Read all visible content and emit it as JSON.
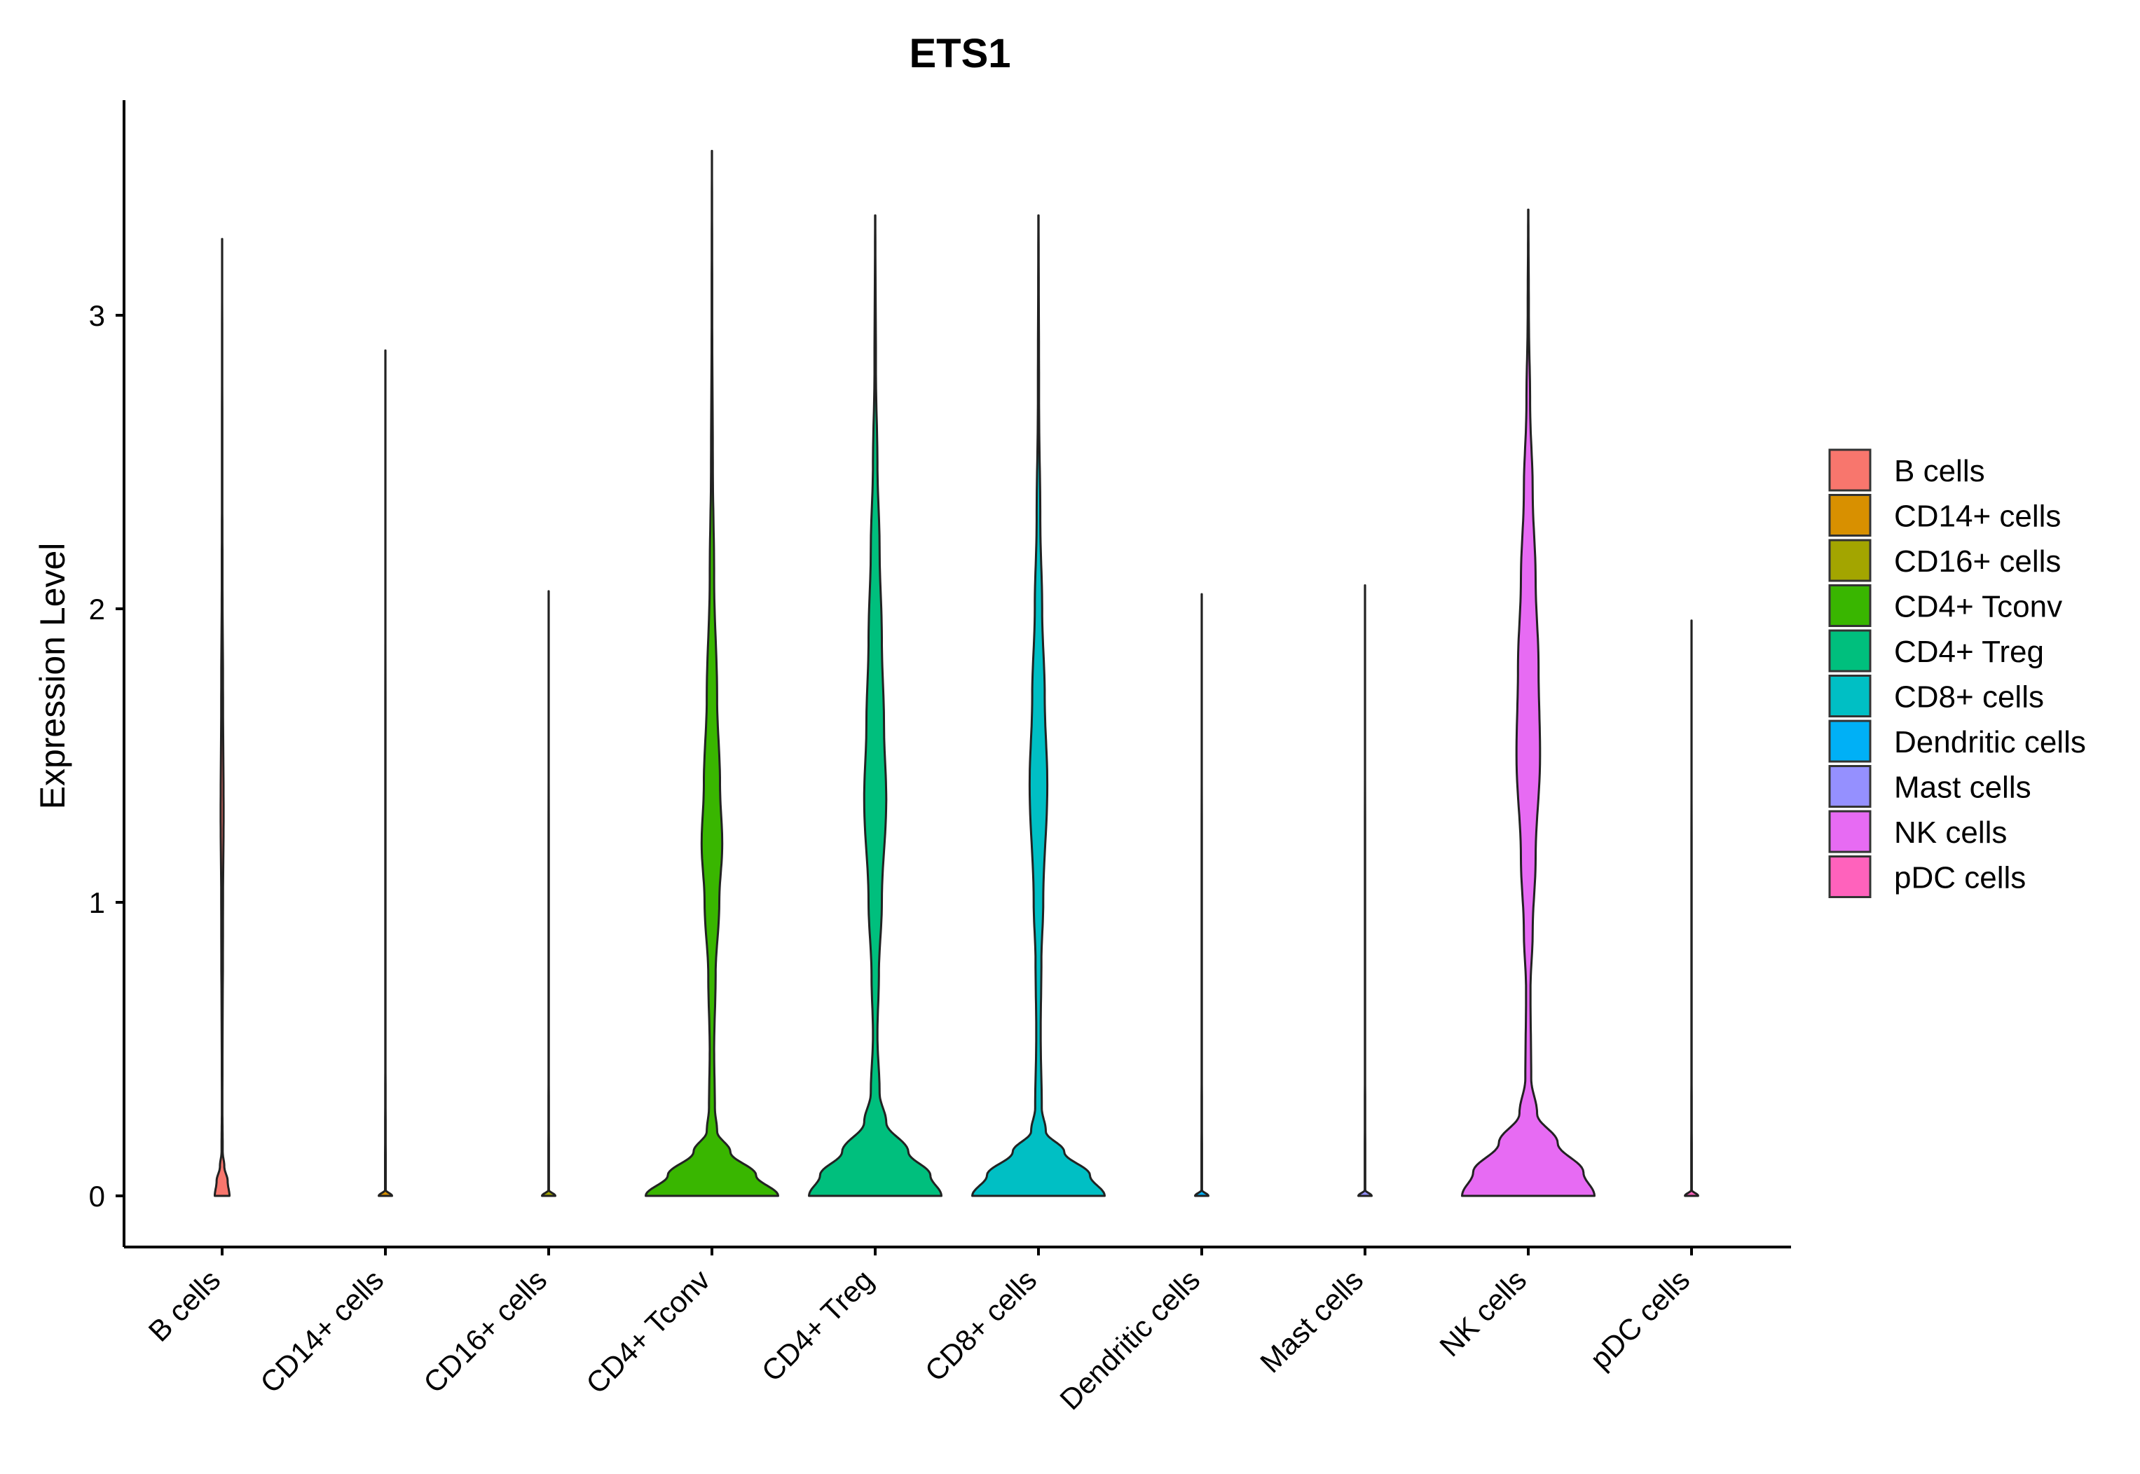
{
  "chart_data": {
    "type": "violin",
    "title": "ETS1",
    "xlabel": "",
    "ylabel": "Expression Level",
    "ylim": [
      -0.18,
      3.72
    ],
    "yticks": [
      "0",
      "1",
      "2",
      "3"
    ],
    "grid": false,
    "legend_position": "right",
    "categories": [
      "B cells",
      "CD14+ cells",
      "CD16+ cells",
      "CD4+ Tconv",
      "CD4+ Treg",
      "CD8+ cells",
      "Dendritic cells",
      "Mast cells",
      "NK cells",
      "pDC cells"
    ],
    "colors": [
      "#F8766D",
      "#D89000",
      "#A3A500",
      "#39B600",
      "#00BF7D",
      "#00BFC4",
      "#00B0F6",
      "#9590FF",
      "#E76BF3",
      "#FF62BC"
    ],
    "series": [
      {
        "category": "B cells",
        "max": 3.26,
        "profile": [
          [
            0,
            0.1
          ],
          [
            0.05,
            0.075
          ],
          [
            0.1,
            0.03
          ],
          [
            0.15,
            0.008
          ],
          [
            0.3,
            0.004
          ],
          [
            1.0,
            0.012
          ],
          [
            1.3,
            0.02
          ],
          [
            1.7,
            0.012
          ],
          [
            2.1,
            0.005
          ],
          [
            2.4,
            0.003
          ],
          [
            3.26,
            0.001
          ]
        ]
      },
      {
        "category": "CD14+ cells",
        "max": 2.88,
        "profile": [
          [
            0,
            0.09
          ],
          [
            0.02,
            0.005
          ],
          [
            0.5,
            0.002
          ],
          [
            2.88,
            0.001
          ]
        ]
      },
      {
        "category": "CD16+ cells",
        "max": 2.06,
        "profile": [
          [
            0,
            0.09
          ],
          [
            0.02,
            0.004
          ],
          [
            0.5,
            0.002
          ],
          [
            2.06,
            0.001
          ]
        ]
      },
      {
        "category": "CD4+ Tconv",
        "max": 3.56,
        "profile": [
          [
            0,
            0.9
          ],
          [
            0.07,
            0.6
          ],
          [
            0.15,
            0.25
          ],
          [
            0.22,
            0.07
          ],
          [
            0.3,
            0.04
          ],
          [
            0.5,
            0.03
          ],
          [
            0.75,
            0.05
          ],
          [
            1.0,
            0.1
          ],
          [
            1.2,
            0.14
          ],
          [
            1.4,
            0.11
          ],
          [
            1.7,
            0.07
          ],
          [
            2.1,
            0.03
          ],
          [
            2.5,
            0.012
          ],
          [
            3.0,
            0.004
          ],
          [
            3.56,
            0.001
          ]
        ]
      },
      {
        "category": "CD4+ Treg",
        "max": 3.34,
        "profile": [
          [
            0,
            0.9
          ],
          [
            0.07,
            0.75
          ],
          [
            0.15,
            0.45
          ],
          [
            0.25,
            0.15
          ],
          [
            0.35,
            0.06
          ],
          [
            0.55,
            0.03
          ],
          [
            0.75,
            0.05
          ],
          [
            1.0,
            0.09
          ],
          [
            1.35,
            0.15
          ],
          [
            1.6,
            0.12
          ],
          [
            1.9,
            0.09
          ],
          [
            2.2,
            0.06
          ],
          [
            2.5,
            0.03
          ],
          [
            2.8,
            0.01
          ],
          [
            3.34,
            0.002
          ]
        ]
      },
      {
        "category": "CD8+ cells",
        "max": 3.34,
        "profile": [
          [
            0,
            0.9
          ],
          [
            0.07,
            0.7
          ],
          [
            0.15,
            0.35
          ],
          [
            0.22,
            0.1
          ],
          [
            0.3,
            0.045
          ],
          [
            0.55,
            0.03
          ],
          [
            0.8,
            0.04
          ],
          [
            1.0,
            0.065
          ],
          [
            1.4,
            0.12
          ],
          [
            1.7,
            0.085
          ],
          [
            2.0,
            0.05
          ],
          [
            2.3,
            0.025
          ],
          [
            2.7,
            0.008
          ],
          [
            3.34,
            0.002
          ]
        ]
      },
      {
        "category": "Dendritic cells",
        "max": 2.05,
        "profile": [
          [
            0,
            0.09
          ],
          [
            0.02,
            0.004
          ],
          [
            0.5,
            0.002
          ],
          [
            2.05,
            0.001
          ]
        ]
      },
      {
        "category": "Mast cells",
        "max": 2.08,
        "profile": [
          [
            0,
            0.09
          ],
          [
            0.02,
            0.004
          ],
          [
            0.5,
            0.002
          ],
          [
            2.08,
            0.001
          ]
        ]
      },
      {
        "category": "NK cells",
        "max": 3.36,
        "profile": [
          [
            0,
            0.9
          ],
          [
            0.08,
            0.75
          ],
          [
            0.18,
            0.4
          ],
          [
            0.28,
            0.12
          ],
          [
            0.4,
            0.04
          ],
          [
            0.7,
            0.03
          ],
          [
            0.9,
            0.06
          ],
          [
            1.15,
            0.1
          ],
          [
            1.5,
            0.16
          ],
          [
            1.8,
            0.14
          ],
          [
            2.1,
            0.1
          ],
          [
            2.4,
            0.06
          ],
          [
            2.7,
            0.025
          ],
          [
            3.0,
            0.008
          ],
          [
            3.36,
            0.002
          ]
        ]
      },
      {
        "category": "pDC cells",
        "max": 1.96,
        "profile": [
          [
            0,
            0.09
          ],
          [
            0.02,
            0.004
          ],
          [
            0.5,
            0.002
          ],
          [
            1.96,
            0.001
          ]
        ]
      }
    ]
  }
}
